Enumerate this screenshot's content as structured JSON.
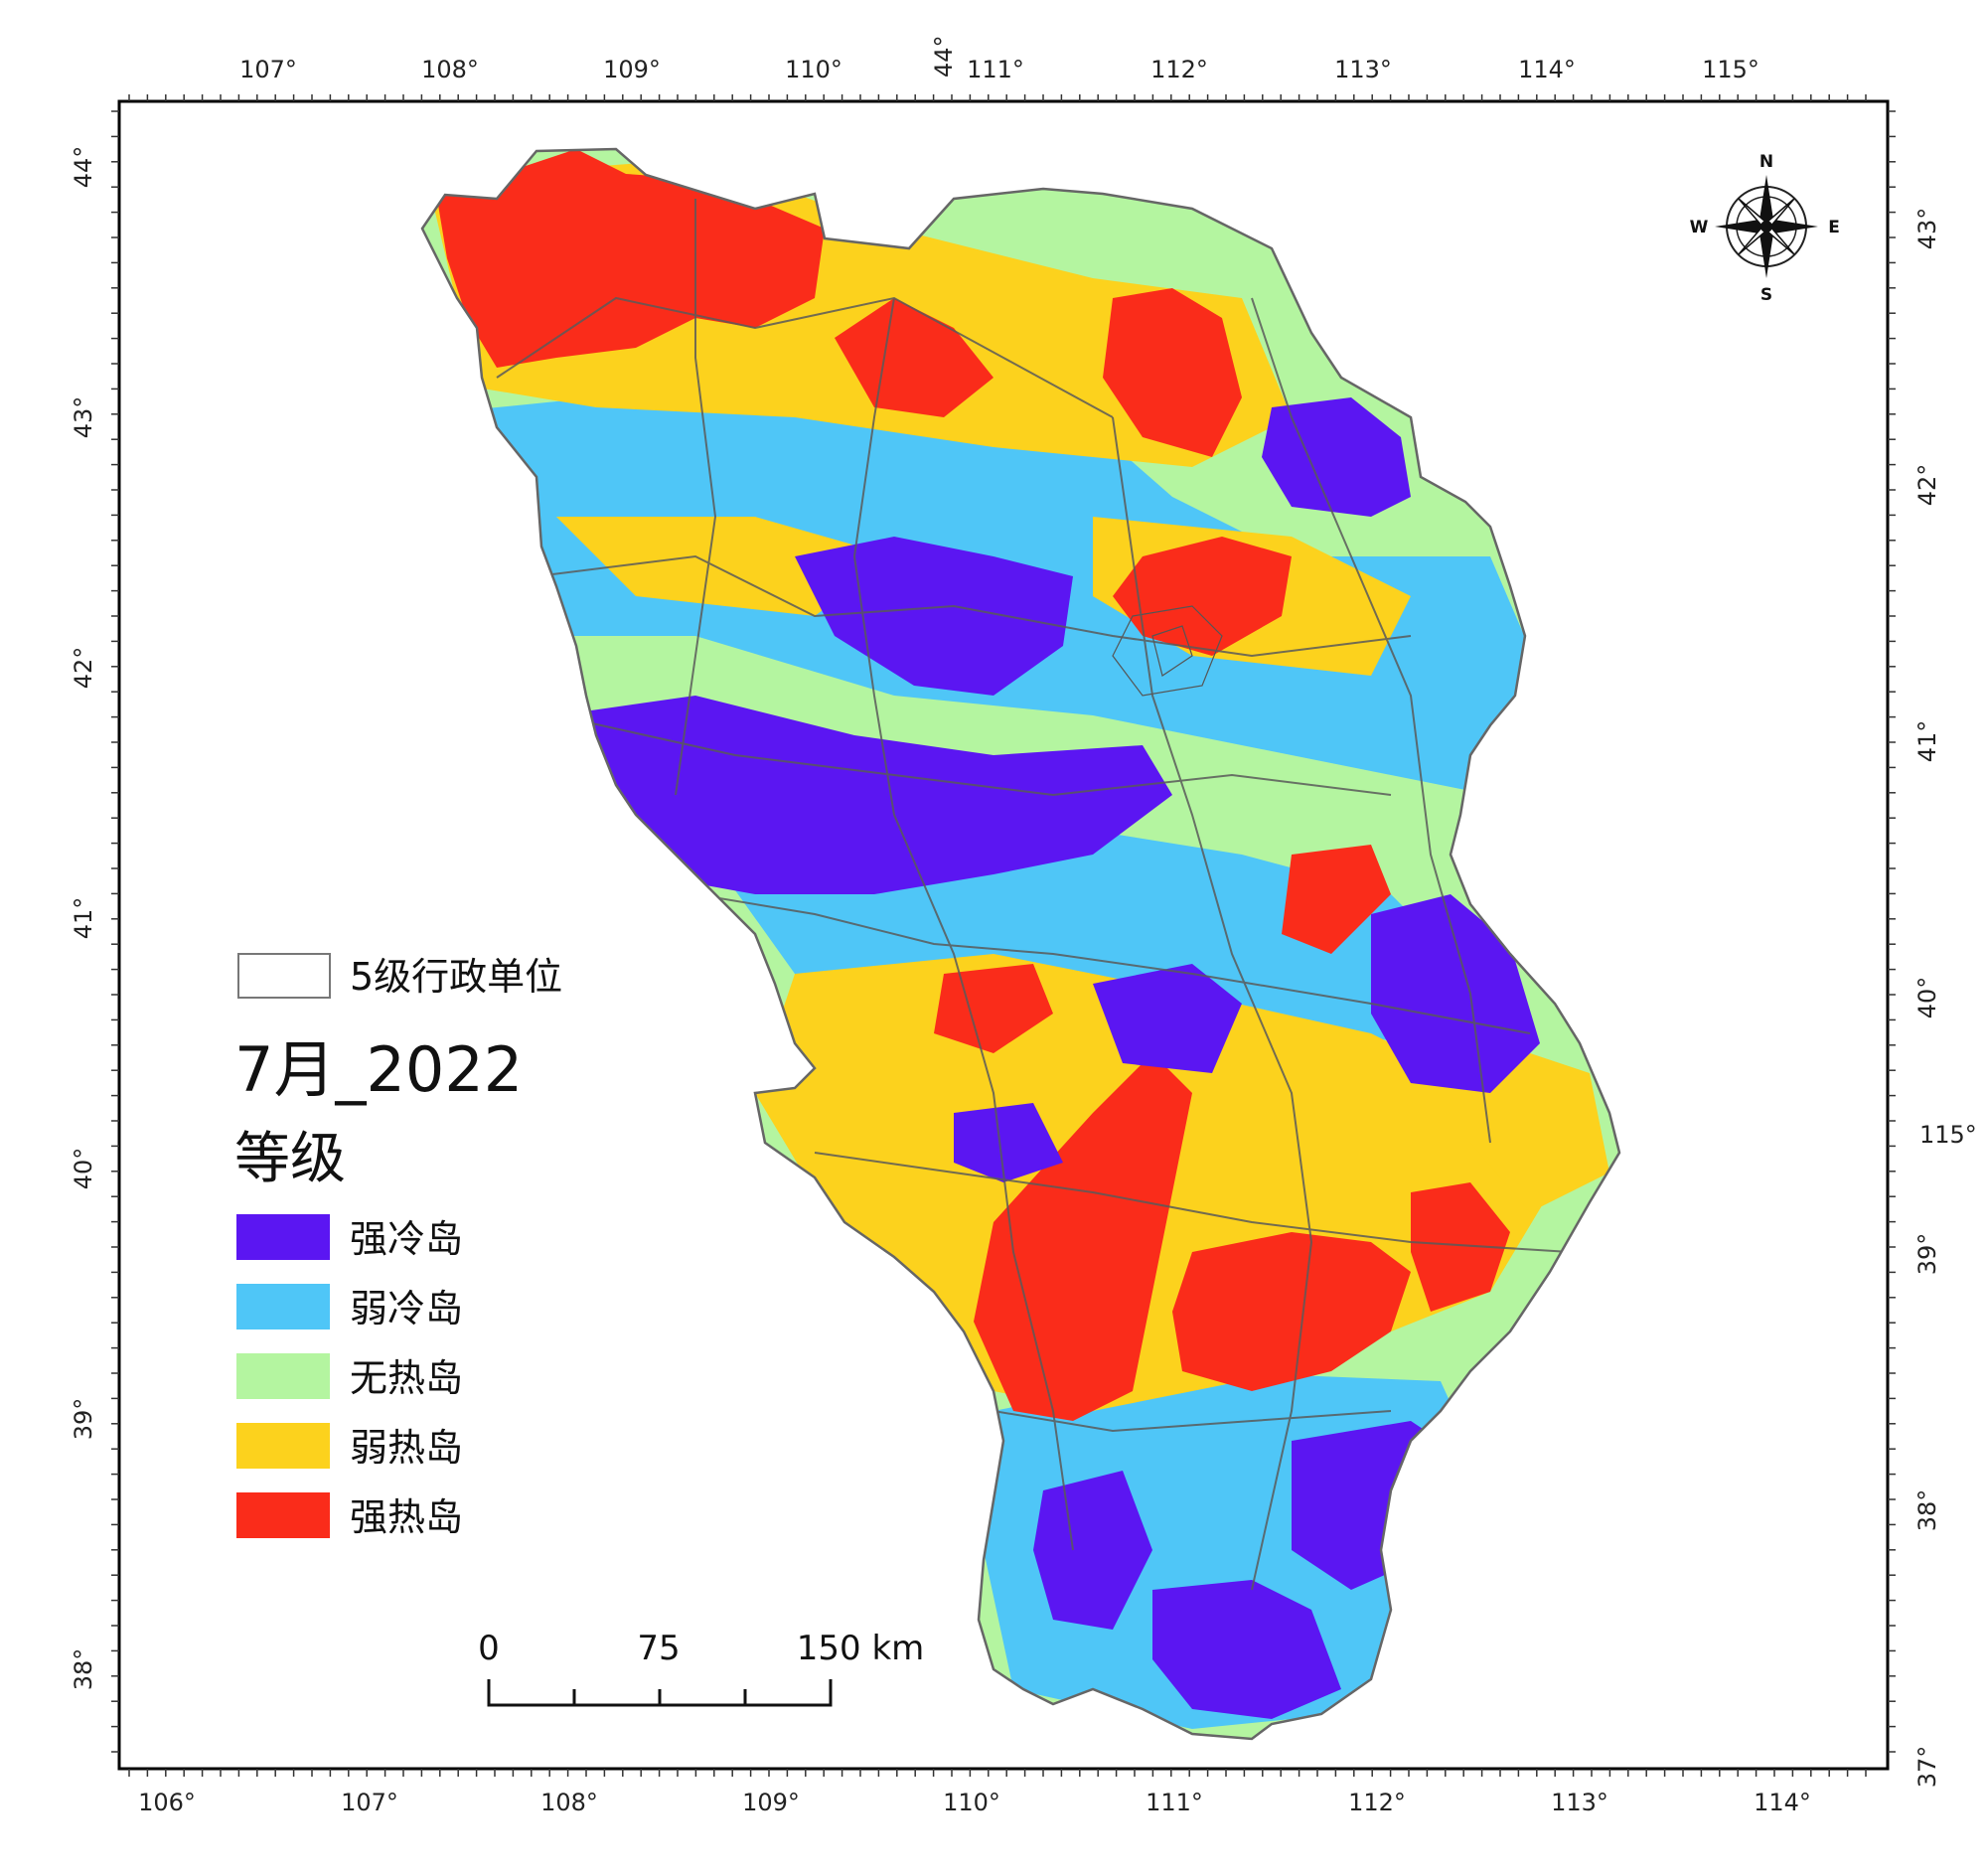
{
  "map": {
    "title": "7月_2022",
    "legend": {
      "boundary_label": "5级行政单位",
      "grade_heading": "等级",
      "classes": [
        {
          "label": "强冷岛",
          "color": "#5b16f2"
        },
        {
          "label": "弱冷岛",
          "color": "#4fc6f7"
        },
        {
          "label": "无热岛",
          "color": "#b4f5a0"
        },
        {
          "label": "弱热岛",
          "color": "#fcd21d"
        },
        {
          "label": "强热岛",
          "color": "#fa2c1a"
        }
      ]
    },
    "scale_bar": {
      "labels": [
        "0",
        "75",
        "150 km"
      ]
    },
    "compass": {
      "north": "N",
      "south": "S",
      "east": "E",
      "west": "W"
    },
    "grid": {
      "top_lon": [
        "107°",
        "108°",
        "109°",
        "110°",
        "111°",
        "112°",
        "113°",
        "114°",
        "115°"
      ],
      "top_extra": "44°",
      "bottom_lon": [
        "106°",
        "107°",
        "108°",
        "109°",
        "110°",
        "111°",
        "112°",
        "113°",
        "114°"
      ],
      "left_lat": [
        "44°",
        "43°",
        "42°",
        "41°",
        "40°",
        "39°",
        "38°"
      ],
      "right_lat": [
        "43°",
        "42°",
        "41°",
        "40°",
        "39°",
        "38°",
        "37°"
      ],
      "right_extra": "115°"
    }
  }
}
